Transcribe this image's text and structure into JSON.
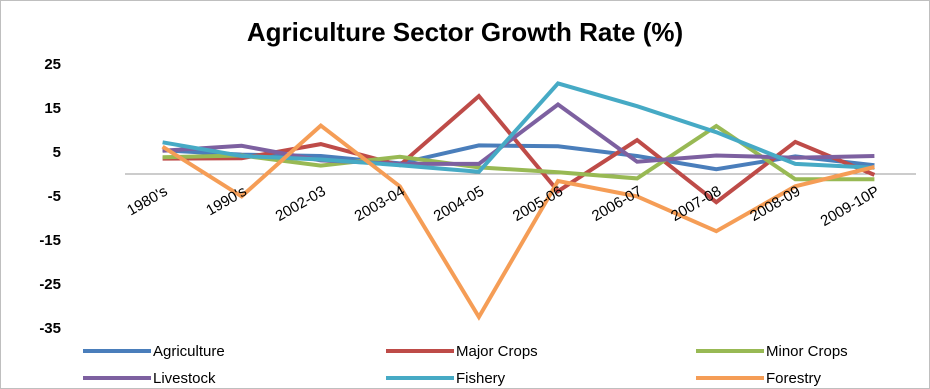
{
  "chart_data": {
    "type": "line",
    "title": "Agriculture Sector Growth Rate (%)",
    "xlabel": "",
    "ylabel": "",
    "categories": [
      "1980's",
      "1990's",
      "2002-03",
      "2003-04",
      "2004-05",
      "2005-06",
      "2006-07",
      "2007-08",
      "2008-09",
      "2009-10P"
    ],
    "y_ticks": [
      25,
      15,
      5,
      -5,
      -15,
      -25,
      -35
    ],
    "ylim": [
      -35,
      25
    ],
    "grid": false,
    "legend_position": "bottom",
    "series": [
      {
        "name": "Agriculture",
        "color": "#4a7ebb",
        "values": [
          5.4,
          4.4,
          4.1,
          2.4,
          6.5,
          6.3,
          4.1,
          1.1,
          4.0,
          2.0
        ]
      },
      {
        "name": "Major Crops",
        "color": "#be4b48",
        "values": [
          3.5,
          3.6,
          6.8,
          2.0,
          17.7,
          -3.9,
          7.7,
          -6.4,
          7.3,
          -0.2
        ]
      },
      {
        "name": "Minor Crops",
        "color": "#98b954",
        "values": [
          3.8,
          4.2,
          1.9,
          3.9,
          1.5,
          0.4,
          -1.0,
          10.9,
          -1.2,
          -1.2
        ]
      },
      {
        "name": "Livestock",
        "color": "#7d60a0",
        "values": [
          5.3,
          6.4,
          3.1,
          2.3,
          2.3,
          15.8,
          2.8,
          4.2,
          3.7,
          4.1
        ]
      },
      {
        "name": "Fishery",
        "color": "#46aac5",
        "values": [
          7.2,
          4.1,
          3.3,
          2.0,
          0.5,
          20.6,
          15.4,
          9.5,
          2.3,
          1.4
        ]
      },
      {
        "name": "Forestry",
        "color": "#f59d56",
        "values": [
          6.2,
          -5.1,
          11.0,
          -2.8,
          -32.5,
          -1.6,
          -5.1,
          -13.0,
          -2.8,
          1.6
        ]
      }
    ]
  }
}
